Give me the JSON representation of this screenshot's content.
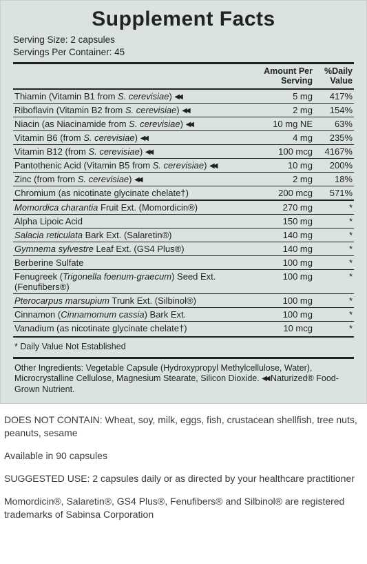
{
  "title": "Supplement Facts",
  "serving_size_label": "Serving Size:",
  "serving_size_value": "2 capsules",
  "servings_per_container_label": "Servings Per Container:",
  "servings_per_container_value": "45",
  "headers": {
    "amount": "Amount Per Serving",
    "dv": "%Daily Value"
  },
  "group1": [
    {
      "name_pre": "Thiamin (Vitamin B1 from ",
      "name_it": "S. cerevisiae",
      "name_post": ")",
      "chev": true,
      "amount": "5 mg",
      "dv": "417%"
    },
    {
      "name_pre": "Riboflavin (Vitamin B2 from ",
      "name_it": "S. cerevisiae",
      "name_post": ")",
      "chev": true,
      "amount": "2 mg",
      "dv": "154%"
    },
    {
      "name_pre": "Niacin (as Niacinamide from ",
      "name_it": "S. cerevisiae",
      "name_post": ")",
      "chev": true,
      "amount": "10 mg NE",
      "dv": "63%"
    },
    {
      "name_pre": "Vitamin B6 (from ",
      "name_it": "S. cerevisiae",
      "name_post": ")",
      "chev": true,
      "amount": "4 mg",
      "dv": "235%"
    },
    {
      "name_pre": "Vitamin B12 (from ",
      "name_it": "S. cerevisiae",
      "name_post": ")",
      "chev": true,
      "amount": "100 mcg",
      "dv": "4167%"
    },
    {
      "name_pre": "Pantothenic Acid (Vitamin B5 from ",
      "name_it": "S. cerevisiae",
      "name_post": ")",
      "chev": true,
      "wrap": true,
      "amount": "10 mg",
      "dv": "200%"
    },
    {
      "name_pre": "Zinc (from from ",
      "name_it": "S. cerevisiae",
      "name_post": ")",
      "chev": true,
      "amount": "2 mg",
      "dv": "18%"
    },
    {
      "name_pre": "Chromium (as nicotinate glycinate chelate†)",
      "name_it": "",
      "name_post": "",
      "chev": false,
      "amount": "200 mcg",
      "dv": "571%"
    }
  ],
  "group2": [
    {
      "name_it": "Momordica charantia",
      "name_post": " Fruit Ext. (Momordicin®)",
      "amount": "270 mg",
      "dv": "*"
    },
    {
      "name_pre": "Alpha Lipoic Acid",
      "amount": "150 mg",
      "dv": "*"
    },
    {
      "name_it": "Salacia reticulata",
      "name_post": " Bark Ext. (Salaretin®)",
      "amount": "140 mg",
      "dv": "*"
    },
    {
      "name_it": "Gymnema sylvestre",
      "name_post": " Leaf Ext. (GS4 Plus®)",
      "amount": "140 mg",
      "dv": "*"
    },
    {
      "name_pre": "Berberine Sulfate",
      "amount": "100 mg",
      "dv": "*"
    },
    {
      "name_pre": "Fenugreek (",
      "name_it": "Trigonella foenum-graecum",
      "name_post": ") Seed Ext. (Fenufibers®)",
      "wrap": true,
      "amount": "100 mg",
      "dv": "*"
    },
    {
      "name_it": "Pterocarpus marsupium",
      "name_post": " Trunk Ext. (Silbinol®)",
      "amount": "100 mg",
      "dv": "*"
    },
    {
      "name_pre": "Cinnamon (",
      "name_it": "Cinnamomum cassia",
      "name_post": ") Bark Ext.",
      "amount": "100 mg",
      "dv": "*"
    },
    {
      "name_pre": "Vanadium (as nicotinate glycinate chelate†)",
      "amount": "10 mcg",
      "dv": "*"
    }
  ],
  "dv_footnote": "* Daily Value Not Established",
  "other_ingredients": "Other Ingredients: Vegetable Capsule (Hydroxypropyl Methylcellulose, Water), Microcrystalline Cellulose, Magnesium Stearate, Silicon Dioxide. ",
  "naturized_note": " Naturized® Food-Grown Nutrient.",
  "does_not_contain": "DOES NOT CONTAIN: Wheat, soy, milk, eggs, fish, crustacean shellfish, tree nuts, peanuts, sesame",
  "available": "Available in 90 capsules",
  "suggested_use": "SUGGESTED USE: 2 capsules daily or as directed by your healthcare practitioner",
  "trademark_note": "Momordicin®, Salaretin®, GS4 Plus®, Fenufibers® and Silbinol® are registered trademarks of Sabinsa Corporation",
  "colors": {
    "panel_bg": "#dae3dd",
    "text": "#222",
    "below_text": "#3a3a3a"
  }
}
